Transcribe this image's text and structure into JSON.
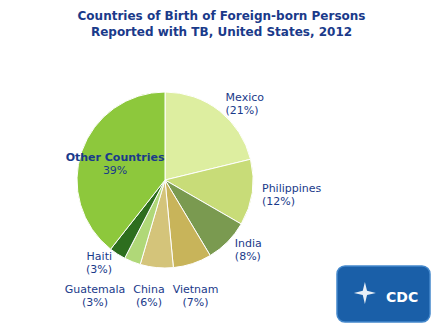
{
  "chart_data": {
    "type": "pie",
    "title": "Countries of Birth of Foreign-born Persons\nReported with TB, United States, 2012",
    "categories": [
      "Mexico",
      "Philippines",
      "India",
      "Vietnam",
      "China",
      "Guatemala",
      "Haiti",
      "Other Countries"
    ],
    "values": [
      21,
      12,
      8,
      7,
      6,
      3,
      3,
      39
    ],
    "value_labels": [
      "(21%)",
      "(12%)",
      "(8%)",
      "(7%)",
      "(6%)",
      "(3%)",
      "(3%)",
      "39%"
    ],
    "colors": [
      "#ddeea0",
      "#c8dc78",
      "#7a9a50",
      "#c8b45a",
      "#d4c47a",
      "#b0d878",
      "#2d6e1e",
      "#8dc83c"
    ],
    "data_labels": true,
    "annotations": [
      "CDC"
    ]
  }
}
